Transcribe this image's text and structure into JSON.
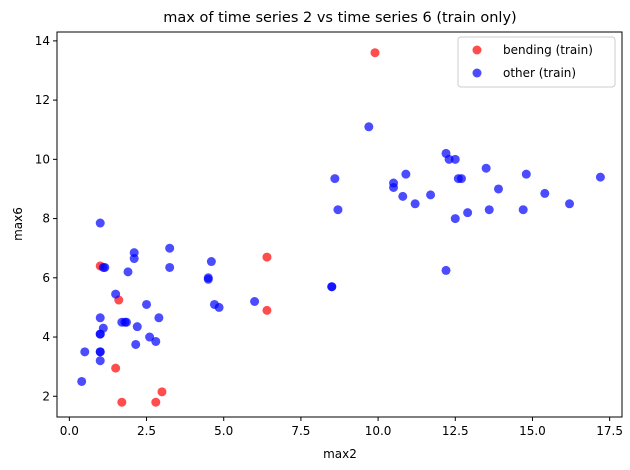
{
  "chart_data": {
    "type": "scatter",
    "title": "max of time series 2 vs time series 6 (train only)",
    "xlabel": "max2",
    "ylabel": "max6",
    "xlim": [
      -0.4,
      17.9
    ],
    "ylim": [
      1.3,
      14.3
    ],
    "xticks": [
      0.0,
      2.5,
      5.0,
      7.5,
      10.0,
      12.5,
      15.0,
      17.5
    ],
    "xtick_labels": [
      "0.0",
      "2.5",
      "5.0",
      "7.5",
      "10.0",
      "12.5",
      "15.0",
      "17.5"
    ],
    "yticks": [
      2,
      4,
      6,
      8,
      10,
      12,
      14
    ],
    "ytick_labels": [
      "2",
      "4",
      "6",
      "8",
      "10",
      "12",
      "14"
    ],
    "grid": false,
    "legend_position": "top-right",
    "series": [
      {
        "name": "bending (train)",
        "color": "#ff0000",
        "points": [
          [
            9.9,
            13.6
          ],
          [
            1.0,
            6.4
          ],
          [
            6.4,
            6.7
          ],
          [
            1.6,
            5.25
          ],
          [
            6.4,
            4.9
          ],
          [
            1.5,
            2.95
          ],
          [
            3.0,
            2.15
          ],
          [
            1.7,
            1.8
          ],
          [
            2.8,
            1.8
          ]
        ]
      },
      {
        "name": "other (train)",
        "color": "#0000ff",
        "points": [
          [
            0.4,
            2.5
          ],
          [
            0.5,
            3.5
          ],
          [
            1.0,
            3.2
          ],
          [
            1.0,
            3.5
          ],
          [
            1.0,
            3.5
          ],
          [
            1.0,
            4.1
          ],
          [
            1.0,
            4.1
          ],
          [
            1.0,
            4.65
          ],
          [
            1.1,
            4.3
          ],
          [
            1.0,
            7.85
          ],
          [
            1.1,
            6.35
          ],
          [
            1.15,
            6.35
          ],
          [
            1.5,
            5.45
          ],
          [
            1.7,
            4.5
          ],
          [
            1.8,
            4.5
          ],
          [
            1.85,
            4.5
          ],
          [
            1.9,
            6.2
          ],
          [
            2.1,
            6.85
          ],
          [
            2.1,
            6.65
          ],
          [
            2.15,
            3.75
          ],
          [
            2.2,
            4.35
          ],
          [
            2.5,
            5.1
          ],
          [
            2.6,
            4.0
          ],
          [
            2.8,
            3.85
          ],
          [
            2.9,
            4.65
          ],
          [
            3.25,
            7.0
          ],
          [
            3.25,
            6.35
          ],
          [
            4.5,
            6.0
          ],
          [
            4.5,
            5.95
          ],
          [
            4.6,
            6.55
          ],
          [
            4.7,
            5.1
          ],
          [
            4.85,
            5.0
          ],
          [
            6.0,
            5.2
          ],
          [
            8.5,
            5.7
          ],
          [
            8.5,
            5.7
          ],
          [
            8.6,
            9.35
          ],
          [
            8.7,
            8.3
          ],
          [
            9.7,
            11.1
          ],
          [
            10.5,
            9.2
          ],
          [
            10.5,
            9.05
          ],
          [
            10.8,
            8.75
          ],
          [
            10.9,
            9.5
          ],
          [
            11.2,
            8.5
          ],
          [
            11.7,
            8.8
          ],
          [
            12.2,
            10.2
          ],
          [
            12.3,
            10.0
          ],
          [
            12.5,
            10.0
          ],
          [
            12.2,
            6.25
          ],
          [
            12.5,
            8.0
          ],
          [
            12.6,
            9.35
          ],
          [
            12.7,
            9.35
          ],
          [
            12.9,
            8.2
          ],
          [
            13.5,
            9.7
          ],
          [
            13.6,
            8.3
          ],
          [
            13.9,
            9.0
          ],
          [
            14.7,
            8.3
          ],
          [
            14.8,
            9.5
          ],
          [
            15.4,
            8.85
          ],
          [
            16.2,
            8.5
          ],
          [
            17.2,
            9.4
          ]
        ]
      }
    ]
  }
}
